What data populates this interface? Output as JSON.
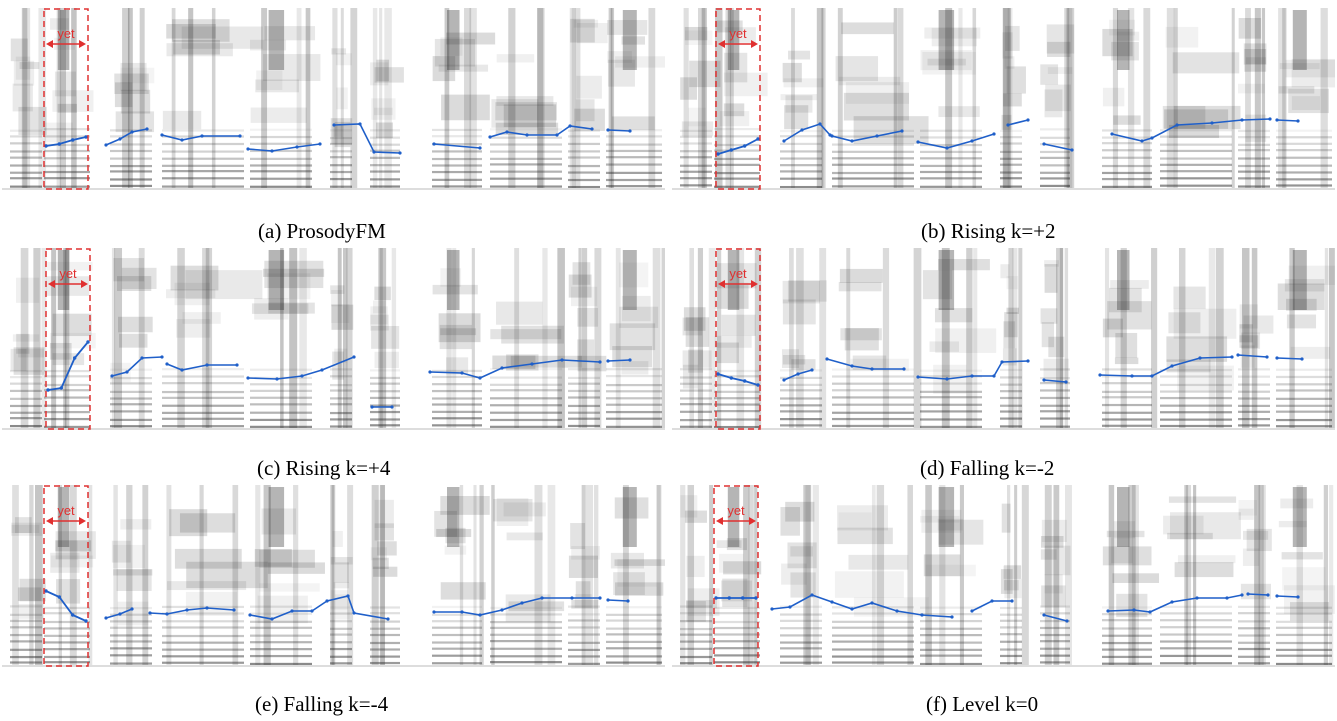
{
  "figure": {
    "panels": [
      {
        "id": "a",
        "caption": "(a) ProsodyFM",
        "word": "yet",
        "yet_contour": [
          138,
          136,
          132,
          129
        ]
      },
      {
        "id": "b",
        "caption": "(b) Rising k=+2",
        "word": "yet",
        "yet_contour": [
          146,
          142,
          138,
          131
        ]
      },
      {
        "id": "c",
        "caption": "(c) Rising k=+4",
        "word": "yet",
        "yet_contour": [
          142,
          140,
          110,
          94
        ]
      },
      {
        "id": "d",
        "caption": "(d) Falling k=-2",
        "word": "yet",
        "yet_contour": [
          126,
          130,
          133,
          137
        ]
      },
      {
        "id": "e",
        "caption": "(e) Falling k=-4",
        "word": "yet",
        "yet_contour": [
          106,
          112,
          130,
          136
        ]
      },
      {
        "id": "f",
        "caption": "(f) Level k=0",
        "word": "yet",
        "yet_contour": [
          113,
          113,
          113,
          113
        ]
      }
    ],
    "colors": {
      "contour": "#1f5fc9",
      "highlight": "#e03030",
      "spectrogram": "#2a2a2a"
    }
  }
}
